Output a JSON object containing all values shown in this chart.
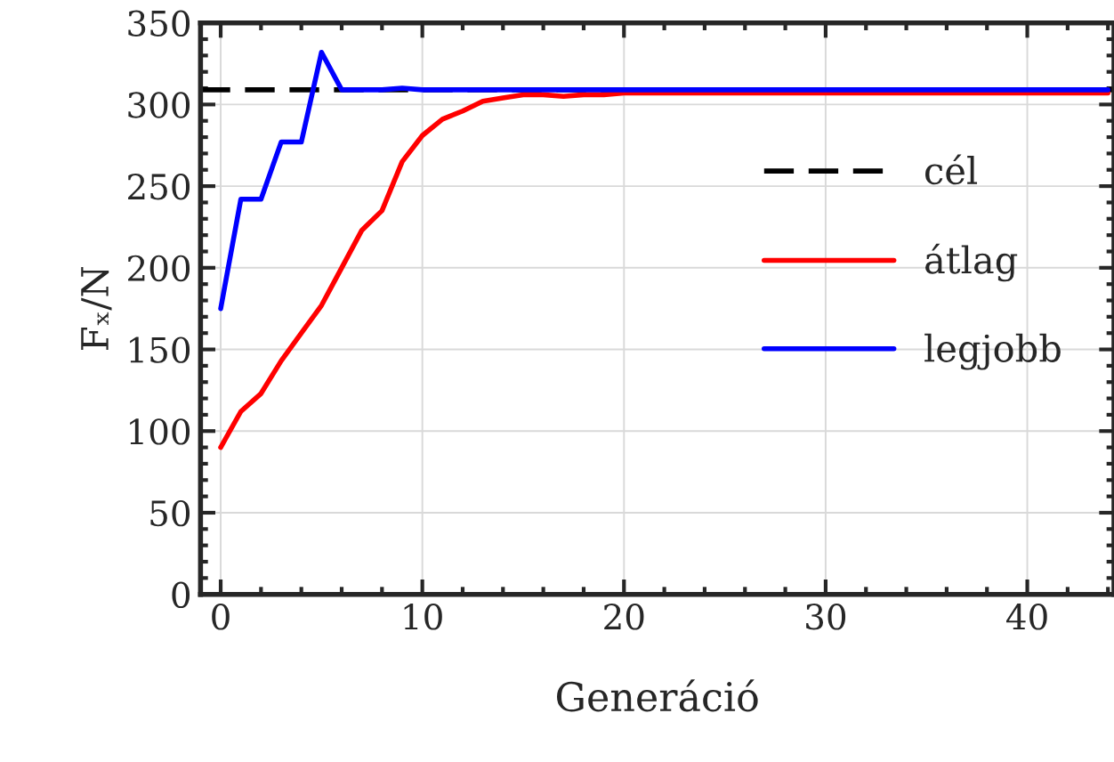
{
  "chart_data": {
    "type": "line",
    "xlabel": "Generáció",
    "ylabel": "Fₓ/N",
    "x": [
      0,
      1,
      2,
      3,
      4,
      5,
      6,
      7,
      8,
      9,
      10,
      11,
      12,
      13,
      14,
      15,
      16,
      17,
      18,
      19,
      20,
      21,
      22,
      23,
      24,
      25,
      26,
      27,
      28,
      29,
      30,
      31,
      32,
      33,
      34,
      35,
      36,
      37,
      38,
      39,
      40,
      41,
      42,
      43,
      44
    ],
    "series": [
      {
        "name": "átlag",
        "color": "#ff0000",
        "values": [
          90,
          112,
          123,
          143,
          160,
          177,
          200,
          223,
          235,
          265,
          281,
          291,
          296,
          302,
          304,
          306,
          306,
          305,
          306,
          306,
          307,
          307,
          307,
          307,
          307,
          307,
          307,
          307,
          307,
          307,
          307,
          307,
          307,
          307,
          307,
          307,
          307,
          307,
          307,
          307,
          307,
          307,
          307,
          307,
          307
        ]
      },
      {
        "name": "legjobb",
        "color": "#0000ff",
        "values": [
          175,
          242,
          242,
          277,
          277,
          332,
          309,
          309,
          309,
          310,
          309,
          309,
          309,
          309,
          309,
          309,
          309,
          309,
          309,
          309,
          309,
          309,
          309,
          309,
          309,
          309,
          309,
          309,
          309,
          309,
          309,
          309,
          309,
          309,
          309,
          309,
          309,
          309,
          309,
          309,
          309,
          309,
          309,
          309,
          309
        ]
      }
    ],
    "ref_lines": [
      {
        "axis": "y",
        "value": 309,
        "label": "cél",
        "color": "#000000",
        "line_style": "dashed"
      }
    ],
    "xlim": [
      -1,
      44.3
    ],
    "ylim": [
      0,
      350
    ],
    "xticks": [
      0,
      10,
      20,
      30,
      40
    ],
    "yticks": [
      0,
      50,
      100,
      150,
      200,
      250,
      300,
      350
    ],
    "grid": true,
    "legend": "right"
  }
}
